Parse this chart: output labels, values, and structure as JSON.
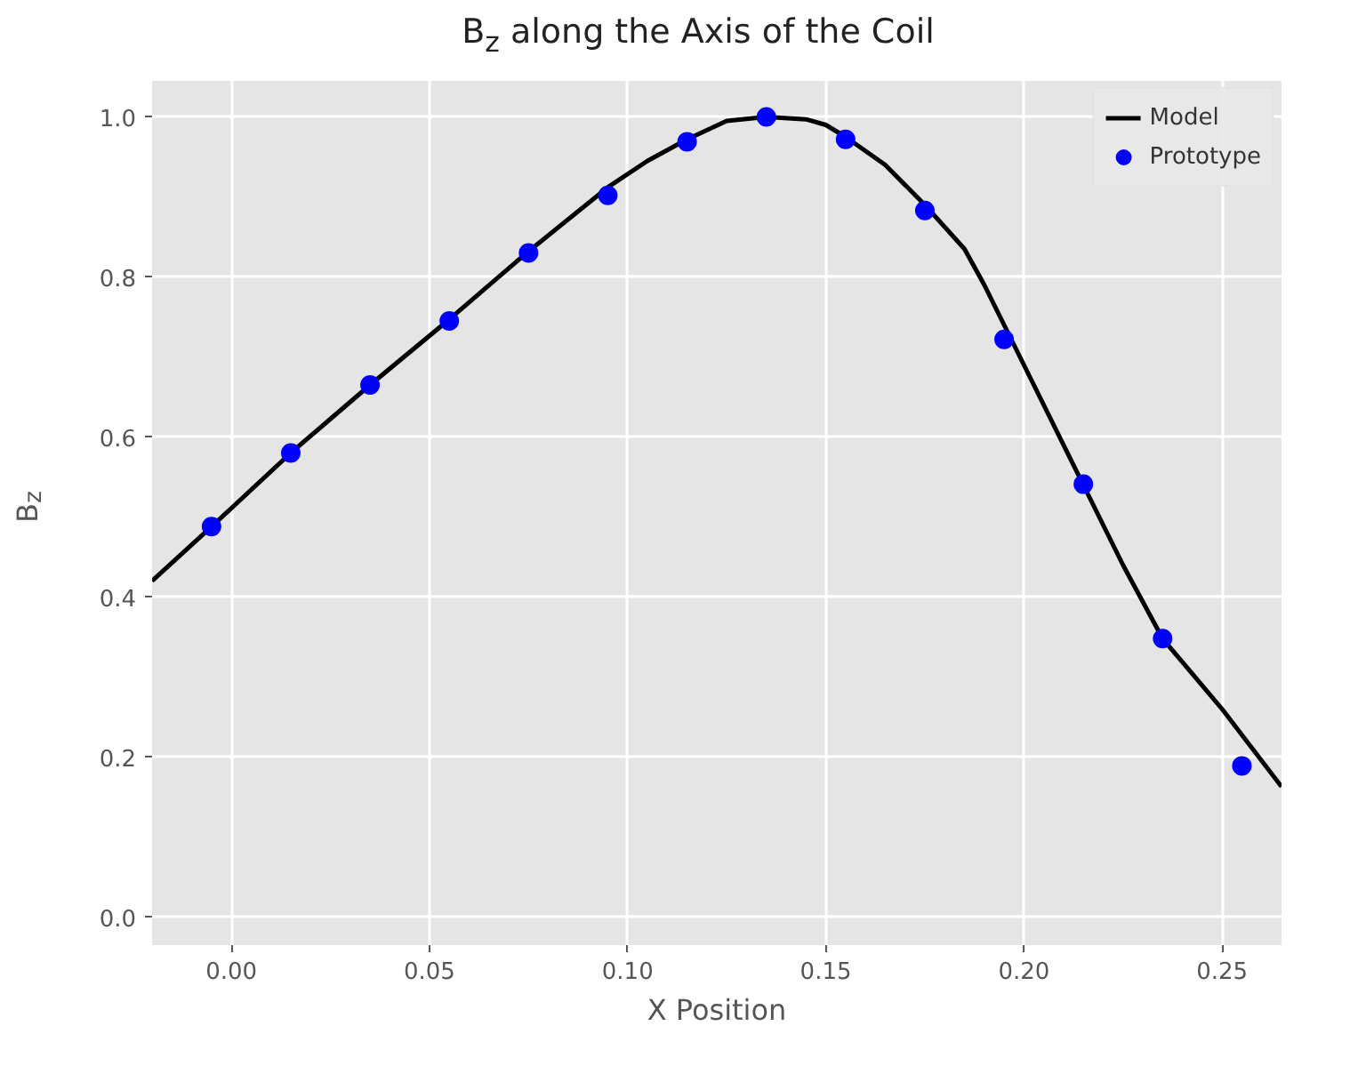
{
  "chart_data": {
    "type": "line",
    "title": "B$_{z}$ along the Axis of the Coil",
    "xlabel": "X Position",
    "ylabel": "B$_{z}$",
    "xlim": [
      -0.02,
      0.265
    ],
    "ylim": [
      -0.035,
      1.045
    ],
    "xticks": [
      {
        "value": 0,
        "label": "0.00"
      },
      {
        "value": 0.05,
        "label": "0.05"
      },
      {
        "value": 0.1,
        "label": "0.10"
      },
      {
        "value": 0.15,
        "label": "0.15"
      },
      {
        "value": 0.2,
        "label": "0.20"
      },
      {
        "value": 0.25,
        "label": "0.25"
      }
    ],
    "yticks": [
      {
        "value": 0,
        "label": "0.0"
      },
      {
        "value": 0.2,
        "label": "0.2"
      },
      {
        "value": 0.4,
        "label": "0.4"
      },
      {
        "value": 0.6,
        "label": "0.6"
      },
      {
        "value": 0.8,
        "label": "0.8"
      },
      {
        "value": 1,
        "label": "1.0"
      }
    ],
    "grid": true,
    "legend": "top right",
    "series": [
      {
        "name": "Model",
        "color": "#000000",
        "marker": "none",
        "line_style": "solid",
        "x": [
          -0.02,
          -0.005,
          0.015,
          0.035,
          0.055,
          0.075,
          0.095,
          0.105,
          0.115,
          0.125,
          0.135,
          0.145,
          0.15,
          0.155,
          0.165,
          0.175,
          0.185,
          0.19,
          0.195,
          0.205,
          0.215,
          0.225,
          0.235,
          0.25,
          0.265
        ],
        "values": [
          0.42,
          0.488,
          0.58,
          0.665,
          0.747,
          0.832,
          0.912,
          0.945,
          0.972,
          0.995,
          1.0,
          0.997,
          0.99,
          0.975,
          0.94,
          0.89,
          0.835,
          0.79,
          0.74,
          0.64,
          0.54,
          0.44,
          0.348,
          0.26,
          0.163
        ]
      },
      {
        "name": "Prototype",
        "type": "scatter",
        "color": "#0000ff",
        "marker": "circle",
        "x": [
          -0.005,
          0.015,
          0.035,
          0.055,
          0.075,
          0.095,
          0.115,
          0.135,
          0.155,
          0.175,
          0.195,
          0.215,
          0.235,
          0.255
        ],
        "values": [
          0.488,
          0.58,
          0.665,
          0.745,
          0.83,
          0.902,
          0.969,
          1.0,
          0.972,
          0.883,
          0.722,
          0.541,
          0.348,
          0.189
        ]
      }
    ]
  }
}
